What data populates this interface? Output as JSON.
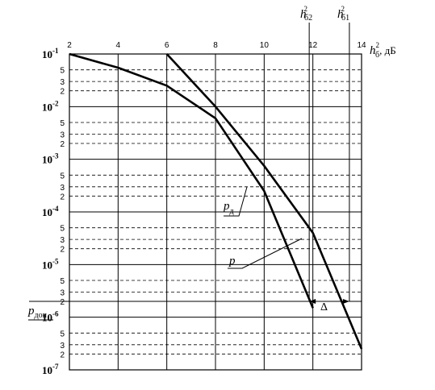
{
  "chart_data": {
    "type": "line",
    "x_axis": {
      "range": [
        2,
        14
      ],
      "ticks": [
        2,
        4,
        6,
        8,
        10,
        12,
        14
      ],
      "tick_labels": [
        "2",
        "4",
        "6",
        "8",
        "10",
        "12",
        "14"
      ],
      "label_main": "h",
      "label_sup": "2",
      "label_sub": "б",
      "label_unit": ", дБ",
      "position": "top"
    },
    "y_axis": {
      "scale": "log",
      "range": [
        1e-07,
        0.1
      ],
      "decades": [
        {
          "value": 0.1,
          "base": "10",
          "exp": "-1"
        },
        {
          "value": 0.01,
          "base": "10",
          "exp": "-2"
        },
        {
          "value": 0.001,
          "base": "10",
          "exp": "-3"
        },
        {
          "value": 0.0001,
          "base": "10",
          "exp": "-4"
        },
        {
          "value": 1e-05,
          "base": "10",
          "exp": "-5"
        },
        {
          "value": 1e-06,
          "base": "10",
          "exp": "-6"
        },
        {
          "value": 1e-07,
          "base": "10",
          "exp": "-7"
        }
      ],
      "minor_multipliers": [
        2,
        3,
        5
      ],
      "minor_labels": [
        "2",
        "3",
        "5"
      ]
    },
    "grid": {
      "major": "solid",
      "minor": "dashed"
    },
    "series": [
      {
        "key": "pd",
        "name_main": "p",
        "name_sub": "д",
        "x": [
          2,
          4,
          6,
          8,
          10,
          12
        ],
        "y": [
          0.1,
          0.055,
          0.025,
          0.006,
          0.00025,
          1.5e-06
        ]
      },
      {
        "key": "p",
        "name_main": "p",
        "name_sub": "",
        "x": [
          6,
          8,
          10,
          12,
          14
        ],
        "y": [
          0.1,
          0.01,
          0.00075,
          4e-05,
          2.5e-07
        ]
      }
    ],
    "annotations": {
      "p_dop": {
        "main": "p",
        "sub": "доп",
        "y": 2e-06
      },
      "h_b2": {
        "main": "h",
        "sup": "2",
        "sub": "б2",
        "x": 11.85
      },
      "h_b1": {
        "main": "h",
        "sup": "2",
        "sub": "б1",
        "x": 13.5
      },
      "delta": {
        "text": "Δ"
      }
    }
  }
}
